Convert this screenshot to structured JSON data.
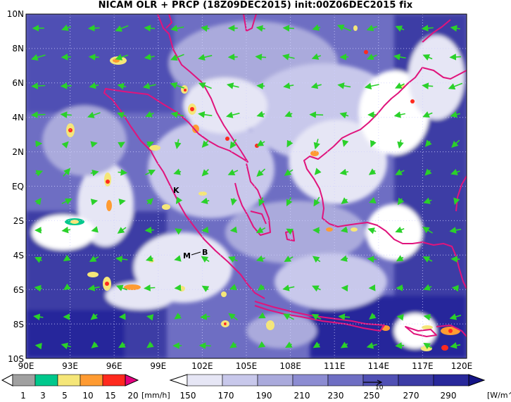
{
  "title": "NICAM OLR + PRCP (18Z09DEC2015) init:00Z06DEC2015 fix",
  "lat_labels": [
    "10N",
    "8N",
    "6N",
    "4N",
    "2N",
    "EQ",
    "2S",
    "4S",
    "6S",
    "8S",
    "10S"
  ],
  "lon_labels": [
    "90E",
    "93E",
    "96E",
    "99E",
    "102E",
    "105E",
    "108E",
    "111E",
    "114E",
    "117E",
    "120E"
  ],
  "place_markers": [
    "K",
    "M",
    "B"
  ],
  "prcp_colorbar": {
    "labels": [
      "1",
      "3",
      "5",
      "10",
      "15",
      "20"
    ],
    "unit": "[mm/h]",
    "colors": [
      "#a0a0a0",
      "#00c88c",
      "#f5e678",
      "#ff9b32",
      "#ff2a1e",
      "#e6007e"
    ]
  },
  "olr_colorbar": {
    "labels": [
      "150",
      "170",
      "190",
      "210",
      "230",
      "250",
      "270",
      "290"
    ],
    "unit": "[W/m^2]",
    "colors": [
      "#ffffff",
      "#e6e6f5",
      "#c8c8eb",
      "#aaaadc",
      "#8c8cd2",
      "#6e6ec3",
      "#5050b4",
      "#3c3ca5",
      "#28289b",
      "#141487"
    ]
  },
  "vector_label": "10",
  "colors": {
    "coastline": "#e0147c",
    "wind_vector": "#2ad12a",
    "ocean_dark": "#2a2a96",
    "cloud_white": "#ffffff"
  }
}
